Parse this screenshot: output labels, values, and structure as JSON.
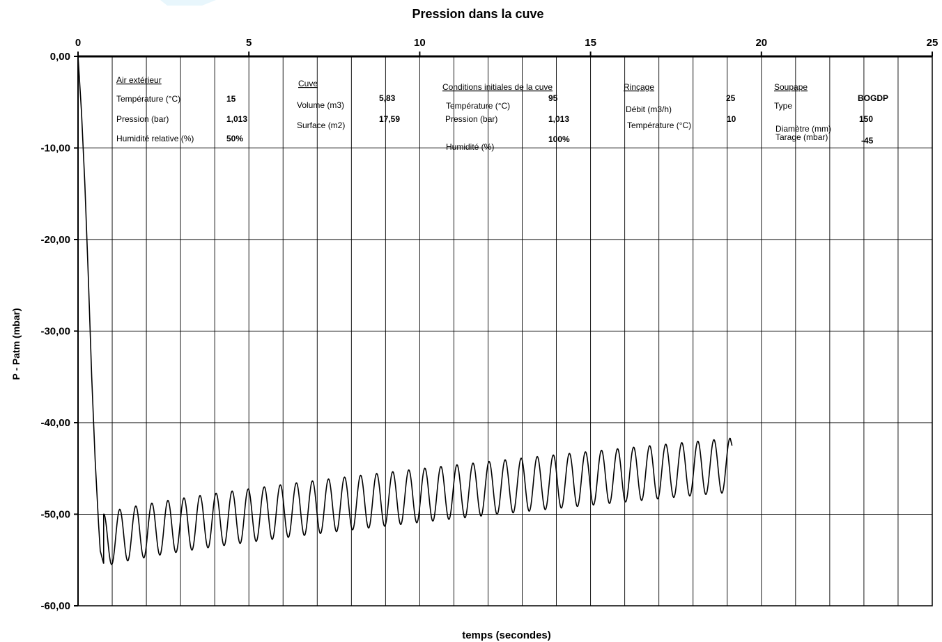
{
  "chart_data": {
    "type": "line",
    "title": "Pression dans la cuve",
    "xlabel": "temps (secondes)",
    "ylabel": "P - Patm (mbar)",
    "xlim": [
      0,
      25
    ],
    "ylim": [
      -60,
      0
    ],
    "x_axis_position": "top",
    "x_ticks": [
      "0",
      "5",
      "10",
      "15",
      "20",
      "25"
    ],
    "y_ticks": [
      "0,00",
      "-10,00",
      "-20,00",
      "-30,00",
      "-40,00",
      "-50,00",
      "-60,00"
    ],
    "grid": "on",
    "series": [
      {
        "initial_drop": [
          [
            0.0,
            0.0
          ],
          [
            0.1,
            -6.0
          ],
          [
            0.2,
            -14.0
          ],
          [
            0.3,
            -24.0
          ],
          [
            0.4,
            -35.0
          ],
          [
            0.5,
            -44.0
          ],
          [
            0.6,
            -51.0
          ],
          [
            0.65,
            -54.0
          ],
          [
            0.75,
            -55.4
          ]
        ],
        "oscillation": {
          "t_start": 0.75,
          "t_end": 19.1,
          "period": 0.47,
          "max_start": -50.0,
          "max_end": -41.7,
          "min_start": -55.8,
          "min_end": -47.6,
          "end_value": -42.5
        }
      }
    ],
    "annotations": {
      "air_exterieur": {
        "heading": "Air extérieur",
        "rows": [
          {
            "label": "Température (°C)",
            "value": "15"
          },
          {
            "label": "Pression (bar)",
            "value": "1,013"
          },
          {
            "label": "Humidité relative (%)",
            "value": "50%"
          }
        ]
      },
      "cuve": {
        "heading": "Cuve",
        "rows": [
          {
            "label": "Volume (m3)",
            "value": "5,83"
          },
          {
            "label": "Surface (m2)",
            "value": "17,59"
          }
        ]
      },
      "conditions_initiales": {
        "heading": "Conditions initiales de la cuve",
        "rows": [
          {
            "label": "Température (°C)",
            "value": "95"
          },
          {
            "label": "Pression (bar)",
            "value": "1,013"
          },
          {
            "label": "Humidité (%)",
            "value": "100%"
          }
        ]
      },
      "rincage": {
        "heading": "Rinçage",
        "rows": [
          {
            "label": "Débit (m3/h)",
            "value": "25"
          },
          {
            "label": "Température (°C)",
            "value": "10"
          }
        ]
      },
      "soupape": {
        "heading": "Soupape",
        "rows": [
          {
            "label": "Type",
            "value": "BOGDP"
          },
          {
            "label": "Diamètre (mm)",
            "value": "150"
          },
          {
            "label": "Tarage (mbar)",
            "value": "-45"
          }
        ]
      }
    }
  },
  "colors": {
    "background": "#ffffff",
    "axis": "#000000",
    "grid": "#000000",
    "series": "#000000",
    "corner_tint": "#e8f6fc"
  }
}
